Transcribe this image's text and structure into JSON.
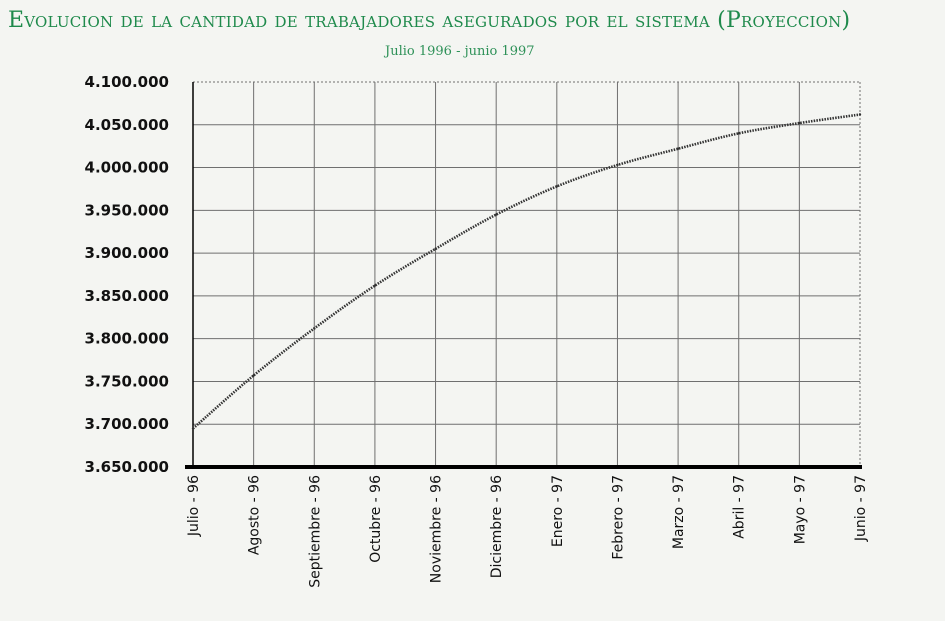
{
  "title": "Evolucion de la cantidad de trabajadores asegurados por el sistema (Proyeccion)",
  "subtitle": "Julio 1996 - junio 1997",
  "colors": {
    "title": "#1f8a4c",
    "line": "#333333",
    "grid": "#6f6f6f",
    "axis": "#000000"
  },
  "chart_data": {
    "type": "line",
    "title": "Evolucion de la cantidad de trabajadores asegurados por el sistema (Proyeccion)",
    "subtitle": "Julio 1996 - junio 1997",
    "xlabel": "",
    "ylabel": "",
    "categories": [
      "Julio - 96",
      "Agosto - 96",
      "Septiembre - 96",
      "Octubre - 96",
      "Noviembre - 96",
      "Diciembre - 96",
      "Enero - 97",
      "Febrero - 97",
      "Marzo - 97",
      "Abril - 97",
      "Mayo - 97",
      "Junio - 97"
    ],
    "ylim": [
      3650000,
      4100000
    ],
    "yticks": [
      3650000,
      3700000,
      3750000,
      3800000,
      3850000,
      3900000,
      3950000,
      4000000,
      4050000,
      4100000
    ],
    "ytick_labels": [
      "3.650.000",
      "3.700.000",
      "3.750.000",
      "3.800.000",
      "3.850.000",
      "3.900.000",
      "3.950.000",
      "4.000.000",
      "4.050.000",
      "4.100.000"
    ],
    "grid": true,
    "legend": "none",
    "series": [
      {
        "values": [
          3695000,
          3757000,
          3812000,
          3862000,
          3905000,
          3945000,
          3978000,
          4003000,
          4022000,
          4040000,
          4052000,
          4062000
        ]
      }
    ]
  }
}
